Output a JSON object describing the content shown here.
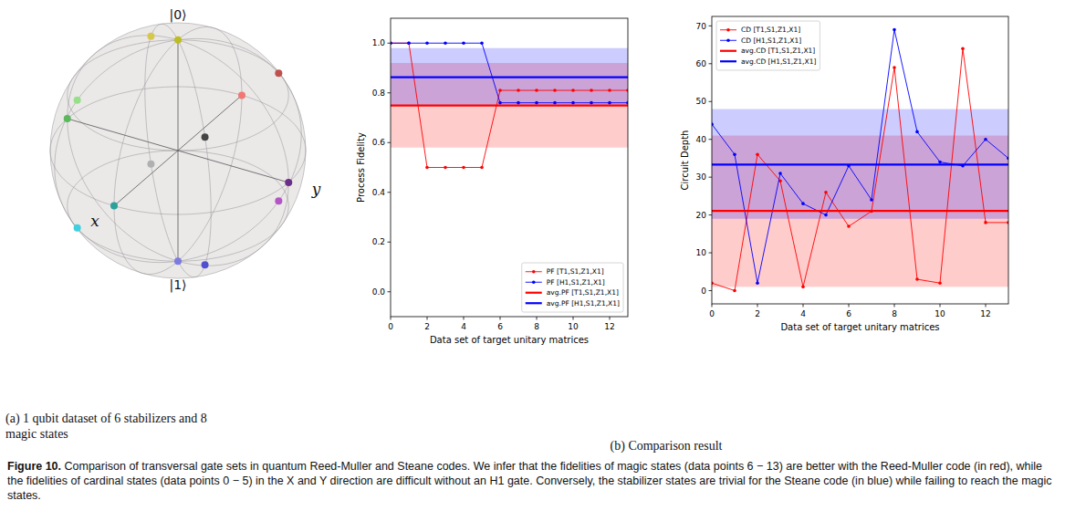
{
  "caption": {
    "label": "Figure 10.",
    "text": "Comparison of transversal gate sets in quantum Reed-Muller and Steane codes. We infer that the fidelities of magic states (data points 6 − 13) are better with the Reed-Muller code (in red), while the fidelities of cardinal states (data points 0 − 5) in the X and Y direction are difficult without an H1 gate. Conversely, the stabilizer states are trivial for the Steane code (in blue) while failing to reach the magic states."
  },
  "panels": [
    {
      "subcaption": "(a) 1 qubit dataset of 6 stabilizers and 8 magic states"
    },
    {
      "subcaption": "(b) Comparison result"
    }
  ],
  "chart_data": [
    {
      "type": "bloch",
      "axis_labels": {
        "x": "x",
        "y": "y",
        "top": "|0⟩",
        "bottom": "|1⟩"
      },
      "points": [
        {
          "x": 0,
          "y": 0,
          "z": 1,
          "color": "#bcbd22"
        },
        {
          "x": 0,
          "y": 0,
          "z": -1,
          "color": "#7b7be0"
        },
        {
          "x": 1,
          "y": 0,
          "z": 0,
          "color": "#2ca09a"
        },
        {
          "x": -1,
          "y": 0,
          "z": 0,
          "color": "#f07870"
        },
        {
          "x": 0,
          "y": 1,
          "z": 0,
          "color": "#6b2d8a"
        },
        {
          "x": 0,
          "y": -1,
          "z": 0,
          "color": "#5cb85c"
        },
        {
          "x": 0.577,
          "y": 0.577,
          "z": 0.577,
          "color": "#444444"
        },
        {
          "x": 0.577,
          "y": 0.577,
          "z": -0.577,
          "color": "#4f4fd0"
        },
        {
          "x": 0.577,
          "y": -0.577,
          "z": 0.577,
          "color": "#98df8a"
        },
        {
          "x": 0.577,
          "y": -0.577,
          "z": -0.577,
          "color": "#3fd0e0"
        },
        {
          "x": -0.577,
          "y": 0.577,
          "z": 0.577,
          "color": "#c0504d"
        },
        {
          "x": -0.577,
          "y": 0.577,
          "z": -0.577,
          "color": "#b455c6"
        },
        {
          "x": -0.577,
          "y": -0.577,
          "z": 0.577,
          "color": "#d6c84e"
        },
        {
          "x": -0.577,
          "y": -0.577,
          "z": -0.577,
          "color": "#b0b0b0"
        }
      ]
    },
    {
      "type": "line",
      "xlabel": "Data set of target unitary matrices",
      "ylabel": "Process Fidelity",
      "x": [
        0,
        1,
        2,
        3,
        4,
        5,
        6,
        7,
        8,
        9,
        10,
        11,
        12,
        13
      ],
      "xlim": [
        0,
        13
      ],
      "xticks": [
        0,
        2,
        4,
        6,
        8,
        10,
        12
      ],
      "ylim": [
        -0.1,
        1.1
      ],
      "yticks": [
        {
          "value": 0,
          "label": "0.0"
        },
        0.2,
        0.4,
        0.6,
        0.8,
        {
          "value": 1,
          "label": "1.0"
        }
      ],
      "legend": "lower right",
      "series": [
        {
          "name": "PF [T1,S1,Z1,X1]",
          "color": "#ff0000",
          "marker": "dot",
          "values": [
            1,
            1,
            0.5,
            0.5,
            0.5,
            0.5,
            0.81,
            0.81,
            0.81,
            0.81,
            0.81,
            0.81,
            0.81,
            0.81
          ]
        },
        {
          "name": "PF [H1,S1,Z1,X1]",
          "color": "#0000ff",
          "marker": "dot",
          "values": [
            1,
            1,
            1,
            1,
            1,
            1,
            0.76,
            0.76,
            0.76,
            0.76,
            0.76,
            0.76,
            0.76,
            0.76
          ]
        },
        {
          "name": "avg.PF [T1,S1,Z1,X1]",
          "type": "hline",
          "color": "#ff0000",
          "value": 0.749,
          "band": [
            0.58,
            0.92
          ]
        },
        {
          "name": "avg.PF [H1,S1,Z1,X1]",
          "type": "hline",
          "color": "#0000ff",
          "value": 0.863,
          "band": [
            0.75,
            0.98
          ]
        }
      ]
    },
    {
      "type": "line",
      "xlabel": "Data set of target unitary matrices",
      "ylabel": "Circuit Depth",
      "x": [
        0,
        1,
        2,
        3,
        4,
        5,
        6,
        7,
        8,
        9,
        10,
        11,
        12,
        13
      ],
      "xlim": [
        0,
        13
      ],
      "xticks": [
        0,
        2,
        4,
        6,
        8,
        10,
        12
      ],
      "ylim": [
        -3.5,
        72.5
      ],
      "yticks": [
        0,
        10,
        20,
        30,
        40,
        50,
        60,
        70
      ],
      "legend": "upper left",
      "series": [
        {
          "name": "CD [T1,S1,Z1,X1]",
          "color": "#ff0000",
          "marker": "dot",
          "values": [
            2,
            0,
            36,
            29,
            1,
            26,
            17,
            21,
            59,
            3,
            2,
            64,
            18,
            18
          ]
        },
        {
          "name": "CD [H1,S1,Z1,X1]",
          "color": "#0000ff",
          "marker": "dot",
          "values": [
            44,
            36,
            2,
            31,
            23,
            20,
            33,
            24,
            69,
            42,
            34,
            33,
            40,
            35
          ]
        },
        {
          "name": "avg.CD [T1,S1,Z1,X1]",
          "type": "hline",
          "color": "#ff0000",
          "value": 21.1,
          "band": [
            1,
            41
          ]
        },
        {
          "name": "avg.CD [H1,S1,Z1,X1]",
          "type": "hline",
          "color": "#0000ff",
          "value": 33.3,
          "band": [
            19,
            48
          ]
        }
      ]
    }
  ]
}
